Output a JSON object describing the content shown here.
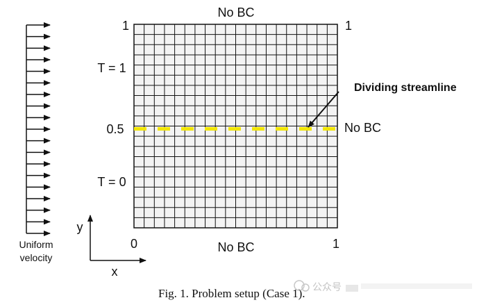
{
  "figure": {
    "caption": "Fig. 1. Problem setup (Case 1).",
    "watermark_text": "公众号",
    "grid": {
      "divisions": 20
    },
    "labels": {
      "top_bc": "No BC",
      "bottom_bc": "No BC",
      "right_bc": "No BC",
      "corner_top_left": "1",
      "corner_top_right": "1",
      "corner_bottom_left": "0",
      "corner_bottom_right": "1",
      "mid_left": "0.5",
      "temp_top": "T = 1",
      "temp_bottom": "T = 0",
      "dividing_streamline": "Dividing streamline",
      "inflow_line1": "Uniform",
      "inflow_line2": "velocity",
      "axis_y": "y",
      "axis_x": "x"
    },
    "inflow_arrows": {
      "count": 19
    },
    "colors": {
      "temp_hot": "#e8141c",
      "temp_cold": "#1a9edb",
      "streamline": "#f2e600",
      "grid_line": "#111111",
      "grid_fill": "#f3f3f3"
    }
  }
}
